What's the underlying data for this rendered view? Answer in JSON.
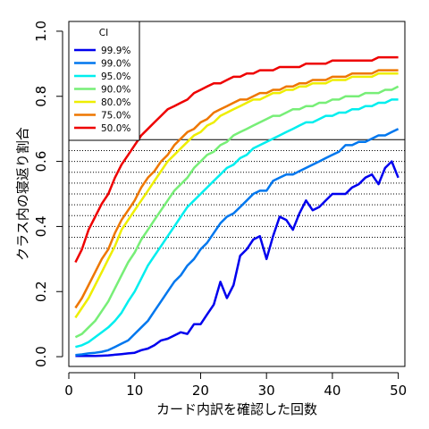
{
  "chart_data": {
    "type": "line",
    "title": "",
    "xlabel": "カード内訳を確認した回数",
    "ylabel": "クラス内の寝返り割合",
    "xlim": [
      0,
      51
    ],
    "ylim": [
      -0.03,
      1.03
    ],
    "xticks": [
      "0",
      "10",
      "20",
      "30",
      "40",
      "50"
    ],
    "yticks": [
      "0.0",
      "0.2",
      "0.4",
      "0.6",
      "0.8",
      "1.0"
    ],
    "legend": {
      "title": "CI",
      "placement": "top-left",
      "entries": [
        "99.9%",
        "99.0%",
        "95.0%",
        "90.0%",
        "80.0%",
        "75.0%",
        "50.0%"
      ]
    },
    "reference_lines": {
      "solid": [
        0.6667
      ],
      "dotted": [
        0.6333,
        0.6,
        0.5667,
        0.5333,
        0.5,
        0.4667,
        0.4333,
        0.4,
        0.3667,
        0.3333
      ]
    },
    "x": [
      1,
      2,
      3,
      4,
      5,
      6,
      7,
      8,
      9,
      10,
      11,
      12,
      13,
      14,
      15,
      16,
      17,
      18,
      19,
      20,
      21,
      22,
      23,
      24,
      25,
      26,
      27,
      28,
      29,
      30,
      31,
      32,
      33,
      34,
      35,
      36,
      37,
      38,
      39,
      40,
      41,
      42,
      43,
      44,
      45,
      46,
      47,
      48,
      49,
      50
    ],
    "series": [
      {
        "name": "99.9%",
        "color": "#0000ee",
        "values": [
          0.002,
          0.002,
          0.002,
          0.002,
          0.003,
          0.004,
          0.006,
          0.008,
          0.01,
          0.012,
          0.02,
          0.025,
          0.035,
          0.05,
          0.055,
          0.065,
          0.075,
          0.07,
          0.1,
          0.1,
          0.13,
          0.16,
          0.23,
          0.18,
          0.22,
          0.31,
          0.33,
          0.36,
          0.37,
          0.3,
          0.37,
          0.43,
          0.42,
          0.39,
          0.44,
          0.48,
          0.45,
          0.46,
          0.48,
          0.5,
          0.5,
          0.5,
          0.52,
          0.53,
          0.55,
          0.56,
          0.53,
          0.58,
          0.6,
          0.55
        ]
      },
      {
        "name": "99.0%",
        "color": "#0077ee",
        "values": [
          0.005,
          0.007,
          0.01,
          0.012,
          0.015,
          0.02,
          0.03,
          0.04,
          0.05,
          0.07,
          0.09,
          0.11,
          0.14,
          0.17,
          0.2,
          0.23,
          0.25,
          0.28,
          0.3,
          0.33,
          0.35,
          0.38,
          0.41,
          0.43,
          0.44,
          0.46,
          0.48,
          0.5,
          0.51,
          0.51,
          0.54,
          0.55,
          0.56,
          0.56,
          0.57,
          0.58,
          0.59,
          0.6,
          0.61,
          0.62,
          0.63,
          0.65,
          0.65,
          0.66,
          0.66,
          0.67,
          0.68,
          0.68,
          0.69,
          0.7
        ]
      },
      {
        "name": "95.0%",
        "color": "#00eeee",
        "values": [
          0.03,
          0.035,
          0.045,
          0.06,
          0.075,
          0.09,
          0.11,
          0.135,
          0.17,
          0.2,
          0.24,
          0.28,
          0.31,
          0.34,
          0.37,
          0.4,
          0.43,
          0.46,
          0.48,
          0.5,
          0.52,
          0.54,
          0.56,
          0.58,
          0.59,
          0.61,
          0.62,
          0.64,
          0.65,
          0.66,
          0.67,
          0.68,
          0.69,
          0.7,
          0.71,
          0.72,
          0.72,
          0.73,
          0.74,
          0.74,
          0.75,
          0.75,
          0.76,
          0.76,
          0.77,
          0.77,
          0.78,
          0.78,
          0.79,
          0.79
        ]
      },
      {
        "name": "90.0%",
        "color": "#77ee77",
        "values": [
          0.06,
          0.07,
          0.09,
          0.11,
          0.14,
          0.17,
          0.21,
          0.25,
          0.29,
          0.32,
          0.36,
          0.39,
          0.42,
          0.45,
          0.48,
          0.51,
          0.53,
          0.55,
          0.58,
          0.6,
          0.62,
          0.63,
          0.65,
          0.66,
          0.68,
          0.69,
          0.7,
          0.71,
          0.72,
          0.73,
          0.74,
          0.74,
          0.75,
          0.76,
          0.76,
          0.77,
          0.77,
          0.78,
          0.78,
          0.79,
          0.79,
          0.8,
          0.8,
          0.8,
          0.81,
          0.81,
          0.81,
          0.82,
          0.82,
          0.83
        ]
      },
      {
        "name": "80.0%",
        "color": "#eeee00",
        "values": [
          0.12,
          0.15,
          0.18,
          0.22,
          0.26,
          0.3,
          0.34,
          0.39,
          0.42,
          0.45,
          0.48,
          0.51,
          0.54,
          0.57,
          0.6,
          0.62,
          0.64,
          0.66,
          0.68,
          0.69,
          0.71,
          0.72,
          0.74,
          0.75,
          0.76,
          0.77,
          0.78,
          0.79,
          0.79,
          0.8,
          0.81,
          0.81,
          0.82,
          0.82,
          0.83,
          0.83,
          0.84,
          0.84,
          0.84,
          0.85,
          0.85,
          0.85,
          0.86,
          0.86,
          0.86,
          0.86,
          0.87,
          0.87,
          0.87,
          0.87
        ]
      },
      {
        "name": "75.0%",
        "color": "#ee7700",
        "values": [
          0.15,
          0.18,
          0.22,
          0.26,
          0.3,
          0.33,
          0.38,
          0.42,
          0.45,
          0.48,
          0.52,
          0.55,
          0.57,
          0.6,
          0.62,
          0.65,
          0.67,
          0.69,
          0.7,
          0.72,
          0.73,
          0.75,
          0.76,
          0.77,
          0.78,
          0.79,
          0.79,
          0.8,
          0.81,
          0.81,
          0.82,
          0.82,
          0.83,
          0.83,
          0.84,
          0.84,
          0.85,
          0.85,
          0.85,
          0.86,
          0.86,
          0.86,
          0.87,
          0.87,
          0.87,
          0.87,
          0.88,
          0.88,
          0.88,
          0.88
        ]
      },
      {
        "name": "50.0%",
        "color": "#ee0000",
        "values": [
          0.29,
          0.33,
          0.39,
          0.43,
          0.47,
          0.5,
          0.55,
          0.59,
          0.62,
          0.65,
          0.68,
          0.7,
          0.72,
          0.74,
          0.76,
          0.77,
          0.78,
          0.79,
          0.81,
          0.82,
          0.83,
          0.84,
          0.84,
          0.85,
          0.86,
          0.86,
          0.87,
          0.87,
          0.88,
          0.88,
          0.88,
          0.89,
          0.89,
          0.89,
          0.89,
          0.9,
          0.9,
          0.9,
          0.9,
          0.91,
          0.91,
          0.91,
          0.91,
          0.91,
          0.91,
          0.91,
          0.92,
          0.92,
          0.92,
          0.92
        ]
      }
    ]
  }
}
